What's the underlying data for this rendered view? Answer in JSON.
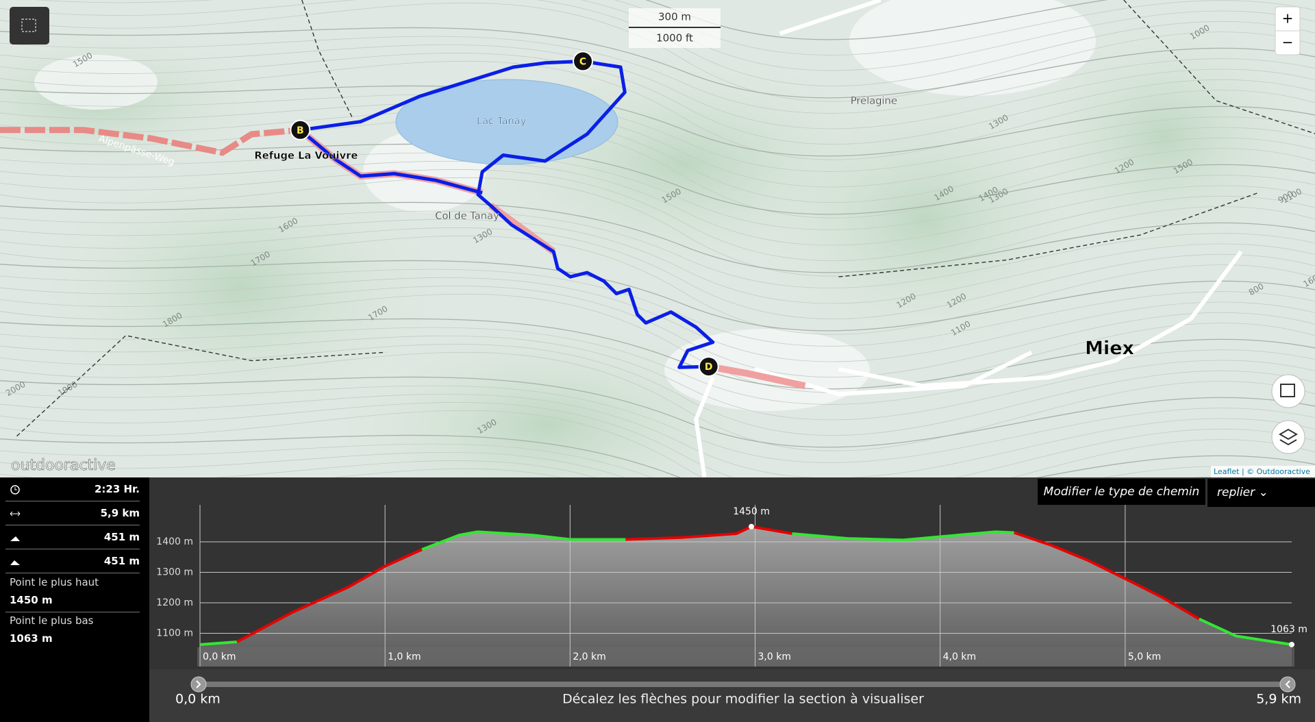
{
  "map": {
    "zoom_in": "+",
    "zoom_out": "−",
    "scale": [
      "300 m",
      "1000 ft"
    ],
    "places": [
      "Lac Tanay",
      "Refuge La Vouivre",
      "Col de Tanay",
      "Prélagine",
      "Miex"
    ],
    "trail": "Alpenpässe-Weg",
    "contour_labels": [
      "1500",
      "1600",
      "1700",
      "1800",
      "1900",
      "2000",
      "1600",
      "1500",
      "1300",
      "1600",
      "1400",
      "1500",
      "1300",
      "1200",
      "1400",
      "1300",
      "1200",
      "1100",
      "1200",
      "1100",
      "1000",
      "900",
      "800",
      "1700",
      "1300"
    ],
    "markers": [
      "B",
      "C",
      "D"
    ],
    "brand": "outdooractive",
    "attribution": "Leaflet | © Outdooractive"
  },
  "stats": {
    "duration": "2:23 Hr.",
    "distance": "5,9 km",
    "ascent": "451 m",
    "descent": "451 m",
    "highest_label": "Point le plus haut",
    "highest": "1450 m",
    "lowest_label": "Point le plus bas",
    "lowest": "1063 m"
  },
  "profile": {
    "type": "area",
    "path_type_button": "Modifier le type de chemin",
    "collapse": "replier",
    "x": [
      0,
      0.2,
      0.5,
      0.8,
      1.0,
      1.2,
      1.4,
      1.5,
      1.8,
      2.0,
      2.3,
      2.6,
      2.9,
      2.98,
      3.2,
      3.5,
      3.8,
      4.0,
      4.3,
      4.4,
      4.6,
      4.8,
      5.0,
      5.2,
      5.4,
      5.6,
      5.9
    ],
    "elevation": [
      1063,
      1072,
      1169,
      1251,
      1320,
      1375,
      1422,
      1433,
      1422,
      1408,
      1408,
      1414,
      1427,
      1450,
      1427,
      1411,
      1406,
      1417,
      1433,
      1430,
      1389,
      1339,
      1279,
      1218,
      1147,
      1091,
      1063
    ],
    "segment_colors": [
      "#33e633",
      "#e60000",
      "#e60000",
      "#e60000",
      "#e60000",
      "#33e633",
      "#33e633",
      "#33e633",
      "#33e633",
      "#33e633",
      "#e60000",
      "#e60000",
      "#e60000",
      "#e60000",
      "#33e633",
      "#33e633",
      "#33e633",
      "#33e633",
      "#33e633",
      "#e60000",
      "#e60000",
      "#e60000",
      "#e60000",
      "#e60000",
      "#33e633",
      "#33e633"
    ],
    "xlim": [
      0,
      5.9
    ],
    "ylim": [
      1000,
      1500
    ],
    "xticks": [
      {
        "value": 0,
        "label": "0,0 km"
      },
      {
        "value": 1,
        "label": "1,0 km"
      },
      {
        "value": 2,
        "label": "2,0 km"
      },
      {
        "value": 3,
        "label": "3,0 km"
      },
      {
        "value": 4,
        "label": "4,0 km"
      },
      {
        "value": 5,
        "label": "5,0 km"
      }
    ],
    "yticks": [
      {
        "value": 1100,
        "label": "1100 m"
      },
      {
        "value": 1200,
        "label": "1200 m"
      },
      {
        "value": 1300,
        "label": "1300 m"
      },
      {
        "value": 1400,
        "label": "1400 m"
      }
    ],
    "peak": {
      "x": 2.98,
      "value": 1450,
      "label": "1450 m"
    },
    "end": {
      "x": 5.9,
      "value": 1063,
      "label": "1063 m"
    },
    "grid": true
  },
  "slider": {
    "start": "0,0 km",
    "end": "5,9 km",
    "hint": "Décalez les flèches pour modifier la section à visualiser"
  }
}
